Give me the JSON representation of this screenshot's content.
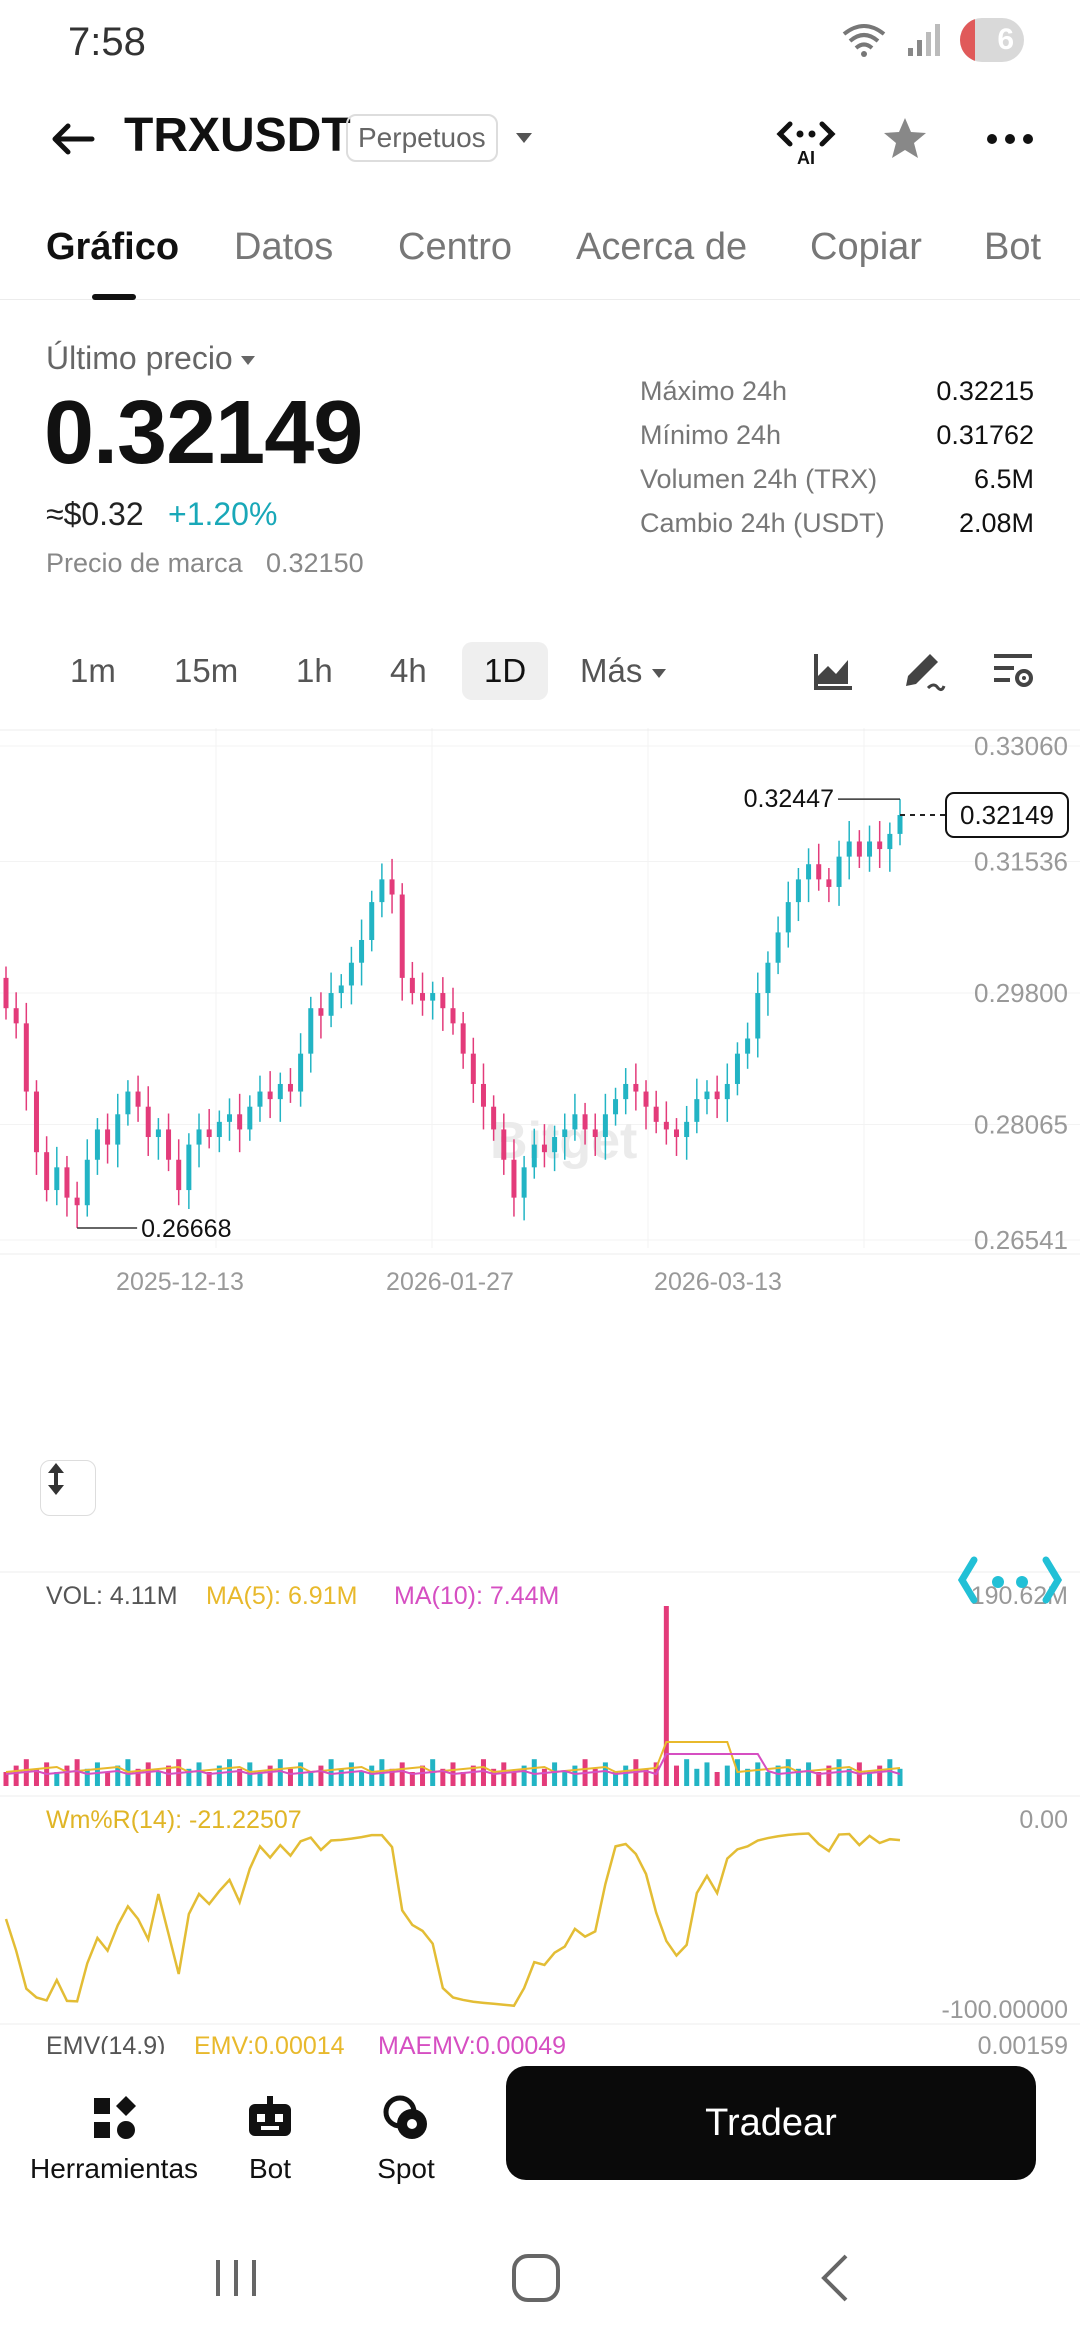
{
  "status": {
    "time": "7:58",
    "battery": "6",
    "battery_level": 0.06
  },
  "header": {
    "pair": "TRXUSDT",
    "contract_type": "Perpetuos"
  },
  "tabs": [
    "Gráfico",
    "Datos",
    "Centro",
    "Acerca de",
    "Copiar",
    "Bot"
  ],
  "price": {
    "last_label": "Último precio",
    "last_price": "0.32149",
    "usd": "≈$0.32",
    "change": "+1.20%",
    "mark_label": "Precio de marca",
    "mark_value": "0.32150"
  },
  "stats": [
    {
      "label": "Máximo 24h",
      "value": "0.32215"
    },
    {
      "label": "Mínimo 24h",
      "value": "0.31762"
    },
    {
      "label": "Volumen 24h (TRX)",
      "value": "6.5M"
    },
    {
      "label": "Cambio 24h (USDT)",
      "value": "2.08M"
    }
  ],
  "intervals": [
    "1m",
    "15m",
    "1h",
    "4h",
    "1D"
  ],
  "intervals_more": "Más",
  "colors": {
    "up": "#22b4c4",
    "down": "#e33b7a",
    "ma5": "#e8b92c",
    "ma10": "#d64fc2"
  },
  "chart_data": {
    "type": "candlestick",
    "watermark": "Bitget",
    "y_ticks": [
      "0.33060",
      "0.31536",
      "0.29800",
      "0.28065",
      "0.26541"
    ],
    "x_ticks": [
      "2025-12-13",
      "2026-01-27",
      "2026-03-13"
    ],
    "current_price": "0.32149",
    "high_label": "0.32447",
    "low_label": "0.26668",
    "ylim": [
      0.26541,
      0.3306
    ],
    "closes": [
      0.296,
      0.294,
      0.285,
      0.277,
      0.272,
      0.275,
      0.271,
      0.27,
      0.276,
      0.28,
      0.278,
      0.282,
      0.285,
      0.283,
      0.279,
      0.28,
      0.276,
      0.272,
      0.278,
      0.28,
      0.279,
      0.281,
      0.282,
      0.28,
      0.283,
      0.285,
      0.284,
      0.286,
      0.285,
      0.29,
      0.296,
      0.295,
      0.298,
      0.299,
      0.302,
      0.305,
      0.31,
      0.313,
      0.311,
      0.3,
      0.298,
      0.297,
      0.298,
      0.296,
      0.294,
      0.29,
      0.286,
      0.283,
      0.28,
      0.276,
      0.271,
      0.275,
      0.278,
      0.277,
      0.279,
      0.28,
      0.282,
      0.28,
      0.279,
      0.282,
      0.284,
      0.286,
      0.285,
      0.283,
      0.281,
      0.28,
      0.279,
      0.281,
      0.284,
      0.285,
      0.284,
      0.286,
      0.29,
      0.292,
      0.298,
      0.302,
      0.306,
      0.31,
      0.313,
      0.315,
      0.313,
      0.312,
      0.316,
      0.318,
      0.316,
      0.318,
      0.317,
      0.319,
      0.32149
    ],
    "volume": {
      "label": "VOL: 4.11M",
      "ma5": "MA(5): 6.91M",
      "ma10": "MA(10): 7.44M",
      "max_tick": "190.62M"
    },
    "wr": {
      "label": "Wm%R(14): -21.22507",
      "top_tick": "0.00",
      "bottom_tick": "-100.00000"
    },
    "emv": {
      "label": "EMV(14,9)",
      "value_label": "EMV:0.00014",
      "maemv_label": "MAEMV:0.00049",
      "tick": "0.00159"
    }
  },
  "bottom_bar": {
    "tools": "Herramientas",
    "bot": "Bot",
    "spot": "Spot",
    "trade": "Tradear"
  }
}
